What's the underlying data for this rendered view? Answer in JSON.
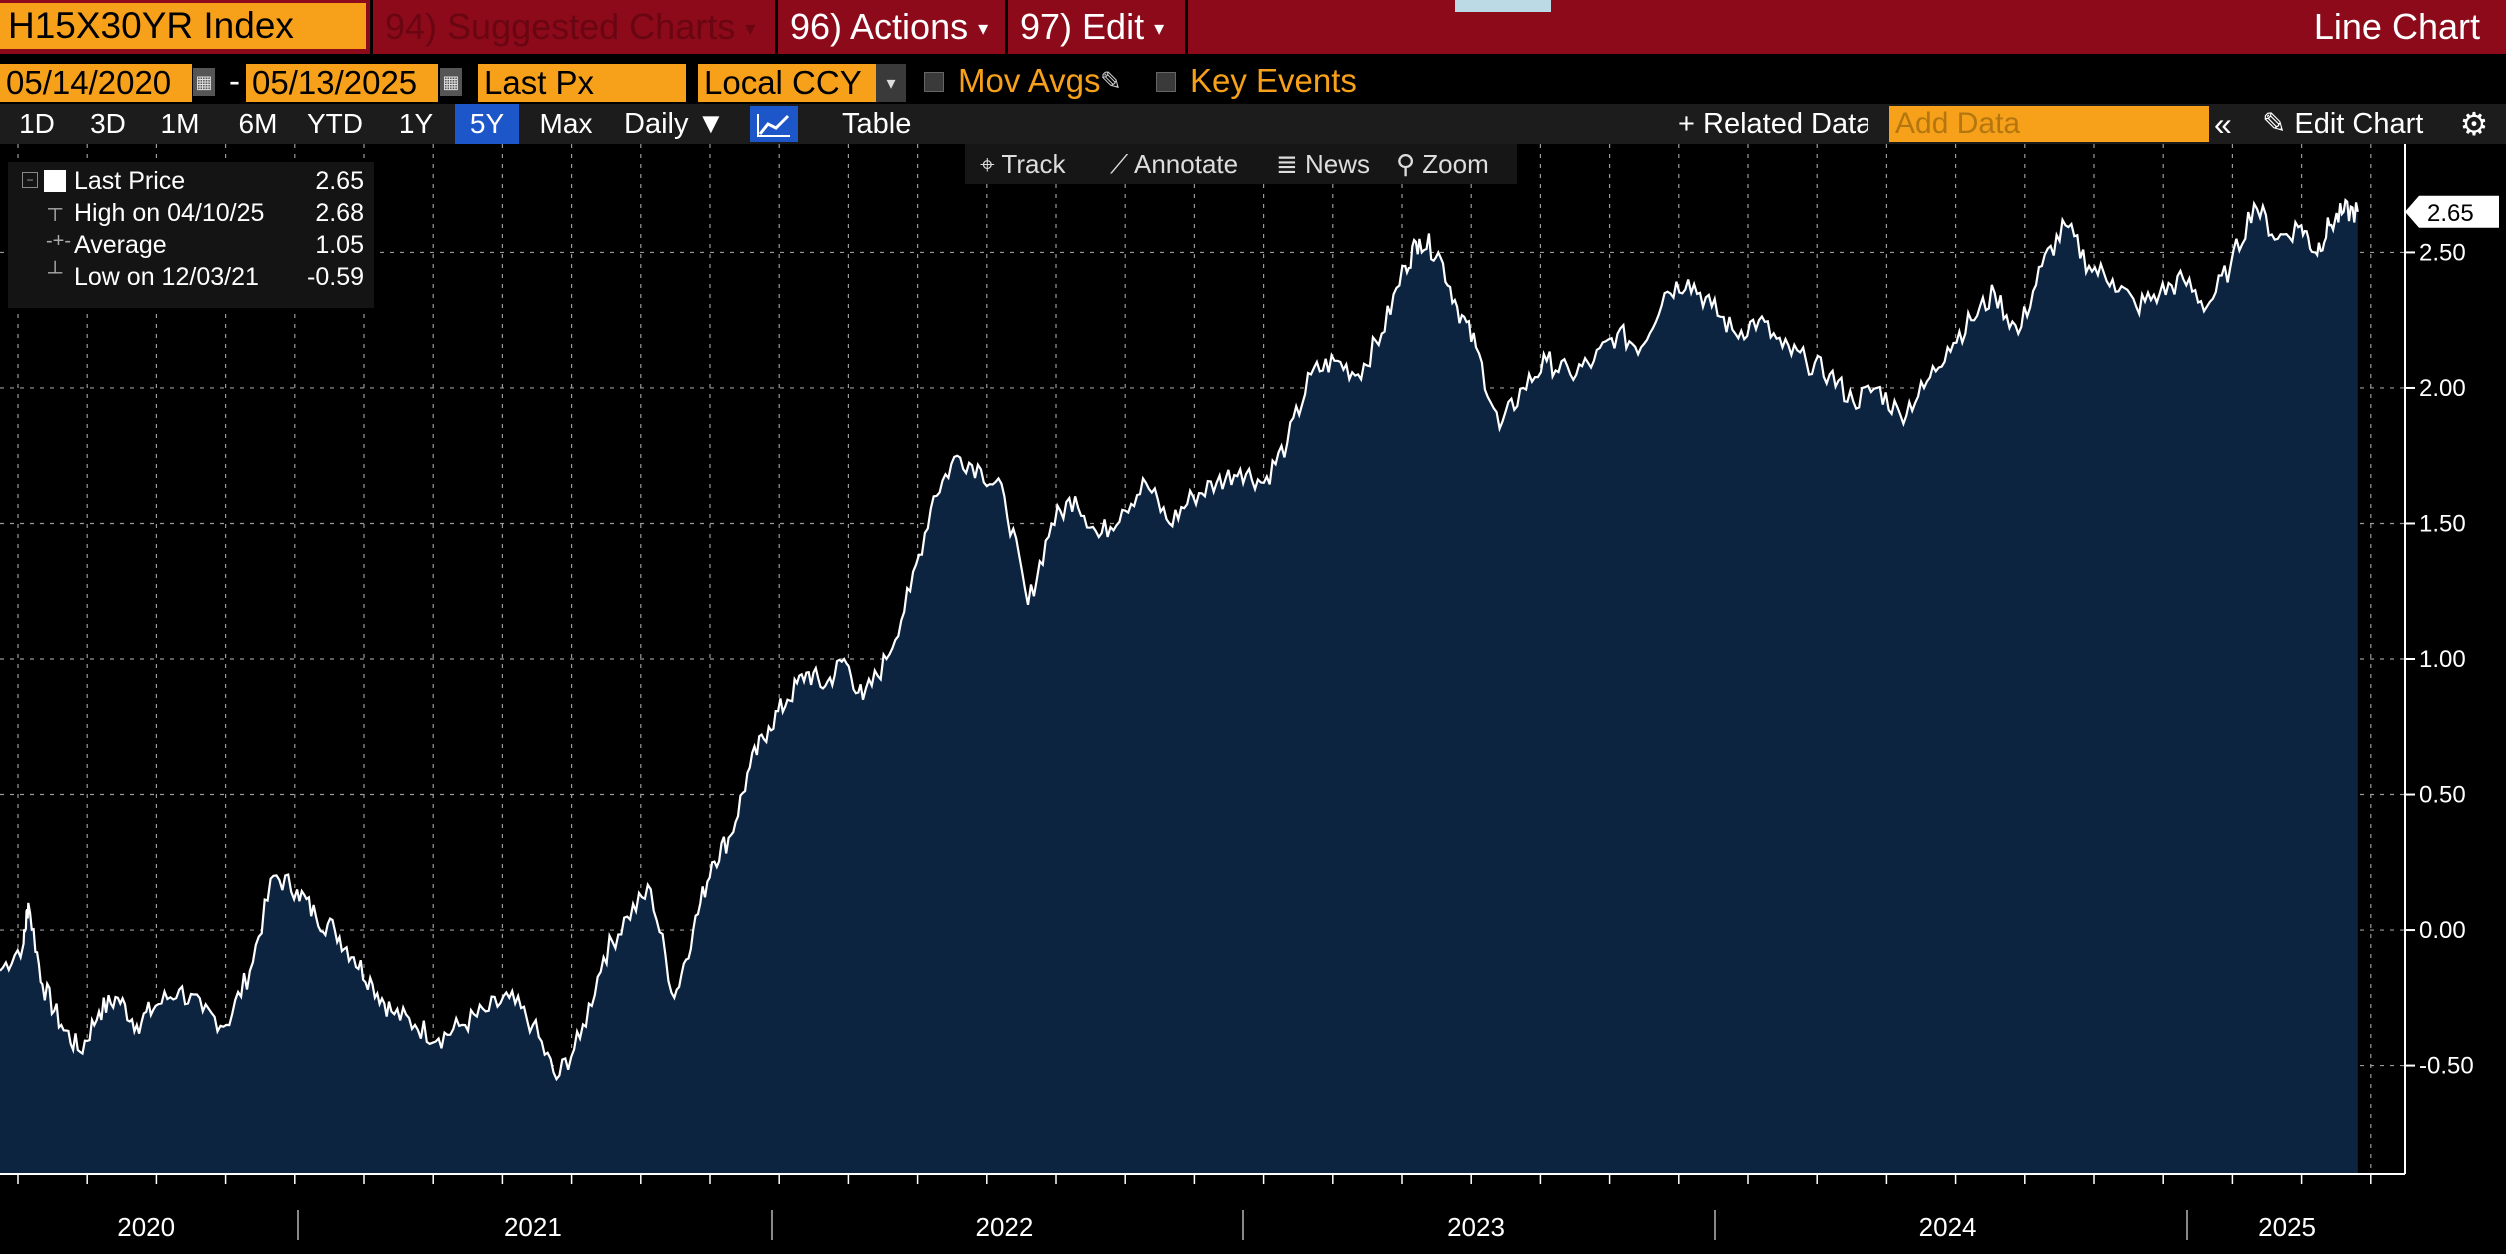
{
  "toolbar": {
    "ticker": "H15X30YR Index",
    "suggested": "94) Suggested Charts",
    "actions": "96) Actions",
    "edit": "97) Edit",
    "chart_name": "Line Chart"
  },
  "controls": {
    "start_date": "05/14/2020",
    "end_date": "05/13/2025",
    "date_sep": "-",
    "field": "Last Px",
    "currency": "Local CCY",
    "mov_avgs": "Mov Avgs",
    "key_events": "Key Events"
  },
  "ranges": [
    "1D",
    "3D",
    "1M",
    "6M",
    "YTD",
    "1Y",
    "5Y",
    "Max"
  ],
  "selected_range": "5Y",
  "frequency": "Daily",
  "table_label": "Table",
  "related_data": "Related Data",
  "add_data_placeholder": "Add Data",
  "edit_chart": "Edit Chart",
  "tools": [
    "Track",
    "Annotate",
    "News",
    "Zoom"
  ],
  "legend": {
    "rows": [
      {
        "label": "Last Price",
        "value": "2.65"
      },
      {
        "label": "High on 04/10/25",
        "value": "2.68"
      },
      {
        "label": "Average",
        "value": "1.05"
      },
      {
        "label": "Low on 12/03/21",
        "value": "-0.59"
      }
    ]
  },
  "colors": {
    "accent_orange": "#f7a11a",
    "topbar_red": "#8c0a1a",
    "area_fill": "#0d2440",
    "line": "#ffffff",
    "selected_blue": "#1d56c9"
  },
  "chart_data": {
    "type": "area",
    "series_name": "Last Price",
    "last_value_label": "2.65",
    "ylim": [
      -0.9,
      2.9
    ],
    "yticks": [
      -0.5,
      0.0,
      0.5,
      1.0,
      1.5,
      2.0,
      2.5
    ],
    "ytick_labels": [
      "-0.50",
      "0.00",
      "0.50",
      "1.00",
      "1.50",
      "2.00",
      "2.50"
    ],
    "xlim": [
      2020.37,
      2025.47
    ],
    "xtick_labels": [
      "2020",
      "2021",
      "2022",
      "2023",
      "2024",
      "2025"
    ],
    "xtick_positions": [
      2020.68,
      2021.5,
      2022.5,
      2023.5,
      2024.5,
      2025.22
    ],
    "x": [
      2020.37,
      2020.42,
      2020.43,
      2020.46,
      2020.5,
      2020.54,
      2020.58,
      2020.62,
      2020.66,
      2020.7,
      2020.75,
      2020.8,
      2020.85,
      2020.9,
      2020.95,
      2021.0,
      2021.04,
      2021.08,
      2021.12,
      2021.16,
      2021.2,
      2021.25,
      2021.3,
      2021.35,
      2021.4,
      2021.45,
      2021.5,
      2021.55,
      2021.6,
      2021.65,
      2021.7,
      2021.75,
      2021.8,
      2021.84,
      2021.88,
      2021.92,
      2021.96,
      2022.0,
      2022.04,
      2022.08,
      2022.12,
      2022.16,
      2022.2,
      2022.25,
      2022.3,
      2022.35,
      2022.4,
      2022.45,
      2022.5,
      2022.55,
      2022.6,
      2022.65,
      2022.7,
      2022.75,
      2022.8,
      2022.85,
      2022.9,
      2022.95,
      2023.0,
      2023.05,
      2023.1,
      2023.15,
      2023.2,
      2023.25,
      2023.3,
      2023.35,
      2023.38,
      2023.42,
      2023.46,
      2023.5,
      2023.55,
      2023.6,
      2023.65,
      2023.7,
      2023.75,
      2023.8,
      2023.85,
      2023.9,
      2023.95,
      2024.0,
      2024.05,
      2024.1,
      2024.15,
      2024.2,
      2024.25,
      2024.3,
      2024.35,
      2024.4,
      2024.45,
      2024.5,
      2024.55,
      2024.6,
      2024.65,
      2024.7,
      2024.75,
      2024.8,
      2024.85,
      2024.9,
      2024.95,
      2025.0,
      2025.05,
      2025.1,
      2025.15,
      2025.2,
      2025.25,
      2025.28,
      2025.31,
      2025.34,
      2025.37
    ],
    "values": [
      -0.15,
      -0.05,
      0.1,
      -0.2,
      -0.35,
      -0.45,
      -0.3,
      -0.25,
      -0.35,
      -0.28,
      -0.22,
      -0.3,
      -0.35,
      -0.15,
      0.2,
      0.15,
      0.05,
      0.0,
      -0.1,
      -0.2,
      -0.3,
      -0.35,
      -0.4,
      -0.35,
      -0.3,
      -0.25,
      -0.35,
      -0.55,
      -0.4,
      -0.1,
      0.05,
      0.15,
      -0.25,
      0.0,
      0.25,
      0.35,
      0.6,
      0.75,
      0.85,
      0.95,
      0.9,
      1.0,
      0.85,
      1.0,
      1.25,
      1.6,
      1.75,
      1.7,
      1.6,
      1.2,
      1.5,
      1.6,
      1.45,
      1.55,
      1.65,
      1.5,
      1.6,
      1.65,
      1.7,
      1.65,
      1.8,
      2.05,
      2.1,
      2.05,
      2.2,
      2.45,
      2.55,
      2.5,
      2.3,
      2.15,
      1.85,
      2.0,
      2.1,
      2.05,
      2.1,
      2.2,
      2.15,
      2.35,
      2.4,
      2.3,
      2.2,
      2.25,
      2.15,
      2.1,
      2.05,
      1.95,
      2.0,
      1.9,
      2.0,
      2.15,
      2.25,
      2.35,
      2.2,
      2.45,
      2.6,
      2.45,
      2.4,
      2.3,
      2.35,
      2.4,
      2.3,
      2.45,
      2.68,
      2.55,
      2.6,
      2.5,
      2.6,
      2.65,
      2.65
    ]
  }
}
